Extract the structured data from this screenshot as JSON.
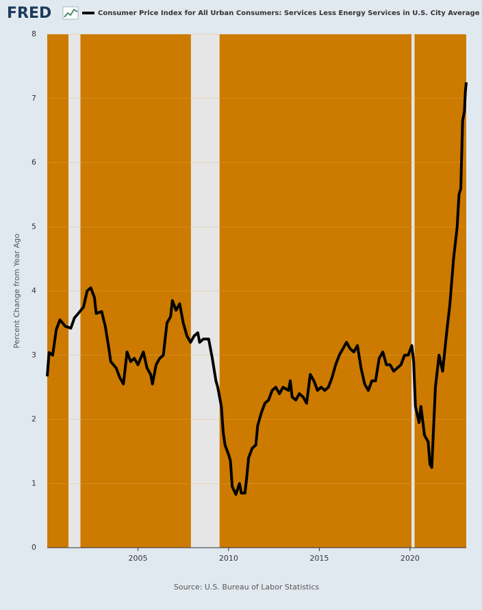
{
  "chart_data": {
    "type": "line",
    "logo": "FRED",
    "source": "Source: U.S. Bureau of Labor Statistics",
    "ylabel": "Percent Change from Year Ago",
    "xlim": [
      2000,
      2023.1
    ],
    "xticks": [
      2005,
      2010,
      2015,
      2020
    ],
    "ylim": [
      0,
      8
    ],
    "yticks": [
      0,
      1,
      2,
      3,
      4,
      5,
      6,
      7,
      8
    ],
    "grid": true,
    "background_color": "#cc7a00",
    "recession_color": "#e6e6e6",
    "recessions": [
      [
        2001.17,
        2001.83
      ],
      [
        2007.92,
        2009.5
      ],
      [
        2020.08,
        2020.25
      ]
    ],
    "x": [
      2000.0,
      2000.1,
      2000.3,
      2000.5,
      2000.7,
      2001.0,
      2001.3,
      2001.5,
      2001.8,
      2002.0,
      2002.2,
      2002.4,
      2002.6,
      2002.7,
      2003.0,
      2003.2,
      2003.4,
      2003.5,
      2003.8,
      2004.0,
      2004.2,
      2004.4,
      2004.6,
      2004.8,
      2005.0,
      2005.3,
      2005.5,
      2005.7,
      2005.8,
      2006.0,
      2006.2,
      2006.4,
      2006.6,
      2006.8,
      2006.9,
      2007.1,
      2007.3,
      2007.5,
      2007.7,
      2007.9,
      2008.1,
      2008.3,
      2008.4,
      2008.6,
      2008.9,
      2009.1,
      2009.3,
      2009.4,
      2009.6,
      2009.7,
      2009.8,
      2010.0,
      2010.1,
      2010.2,
      2010.4,
      2010.6,
      2010.7,
      2010.9,
      2011.0,
      2011.1,
      2011.3,
      2011.5,
      2011.6,
      2011.8,
      2012.0,
      2012.2,
      2012.4,
      2012.6,
      2012.8,
      2013.0,
      2013.3,
      2013.4,
      2013.5,
      2013.7,
      2013.9,
      2014.1,
      2014.3,
      2014.5,
      2014.7,
      2014.9,
      2015.1,
      2015.3,
      2015.5,
      2015.7,
      2015.9,
      2016.1,
      2016.3,
      2016.5,
      2016.7,
      2016.9,
      2017.1,
      2017.3,
      2017.5,
      2017.7,
      2017.9,
      2018.1,
      2018.3,
      2018.5,
      2018.7,
      2018.9,
      2019.1,
      2019.3,
      2019.5,
      2019.7,
      2019.9,
      2020.1,
      2020.2,
      2020.3,
      2020.5,
      2020.6,
      2020.8,
      2021.0,
      2021.1,
      2021.2,
      2021.4,
      2021.6,
      2021.8,
      2022.0,
      2022.2,
      2022.4,
      2022.6,
      2022.7,
      2022.8,
      2022.9,
      2023.0,
      2023.05,
      2023.1
    ],
    "series": [
      {
        "name": "Consumer Price Index for All Urban Consumers: Services Less Energy Services in U.S. City Average",
        "color": "#000000",
        "values": [
          2.67,
          3.04,
          3.0,
          3.4,
          3.55,
          3.45,
          3.42,
          3.58,
          3.68,
          3.75,
          4.0,
          4.05,
          3.9,
          3.65,
          3.68,
          3.45,
          3.1,
          2.9,
          2.8,
          2.65,
          2.55,
          3.05,
          2.9,
          2.95,
          2.85,
          3.05,
          2.8,
          2.7,
          2.55,
          2.85,
          2.95,
          3.0,
          3.5,
          3.6,
          3.85,
          3.7,
          3.8,
          3.5,
          3.3,
          3.2,
          3.3,
          3.35,
          3.2,
          3.25,
          3.25,
          2.95,
          2.6,
          2.5,
          2.2,
          1.8,
          1.6,
          1.45,
          1.35,
          0.95,
          0.83,
          1.0,
          0.85,
          0.85,
          1.1,
          1.4,
          1.55,
          1.6,
          1.9,
          2.1,
          2.25,
          2.3,
          2.45,
          2.5,
          2.4,
          2.5,
          2.45,
          2.6,
          2.35,
          2.3,
          2.4,
          2.35,
          2.25,
          2.7,
          2.6,
          2.45,
          2.5,
          2.45,
          2.5,
          2.65,
          2.85,
          3.0,
          3.1,
          3.2,
          3.1,
          3.05,
          3.15,
          2.8,
          2.55,
          2.45,
          2.6,
          2.6,
          2.95,
          3.05,
          2.85,
          2.85,
          2.75,
          2.8,
          2.85,
          3.0,
          3.0,
          3.15,
          2.9,
          2.2,
          1.95,
          2.2,
          1.75,
          1.65,
          1.3,
          1.25,
          2.5,
          3.0,
          2.75,
          3.3,
          3.8,
          4.5,
          5.0,
          5.5,
          5.6,
          6.65,
          6.8,
          7.1,
          7.25
        ]
      }
    ]
  }
}
